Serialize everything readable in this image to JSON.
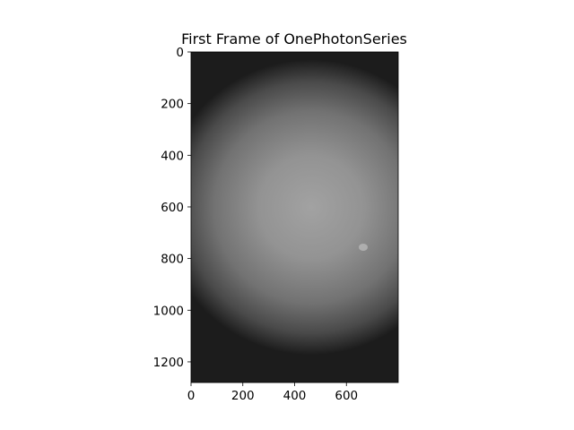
{
  "chart_data": {
    "type": "heatmap",
    "title": "First Frame of OnePhotonSeries",
    "xlabel": "",
    "ylabel": "",
    "xlim": [
      0,
      800
    ],
    "ylim": [
      1280,
      0
    ],
    "x_ticks": [
      {
        "value": 0,
        "label": "0"
      },
      {
        "value": 200,
        "label": "200"
      },
      {
        "value": 400,
        "label": "400"
      },
      {
        "value": 600,
        "label": "600"
      }
    ],
    "y_ticks": [
      {
        "value": 0,
        "label": "0"
      },
      {
        "value": 200,
        "label": "200"
      },
      {
        "value": 400,
        "label": "400"
      },
      {
        "value": 600,
        "label": "600"
      },
      {
        "value": 800,
        "label": "800"
      },
      {
        "value": 1000,
        "label": "1000"
      },
      {
        "value": 1200,
        "label": "1200"
      }
    ],
    "colormap": "gray",
    "grid": false,
    "image_shape": [
      1280,
      800
    ]
  },
  "colors": {
    "axis": "#000000",
    "background": "#ffffff",
    "image_bright": "#a0a0a0",
    "image_mid": "#6a6a6a",
    "image_dark": "#161616"
  }
}
